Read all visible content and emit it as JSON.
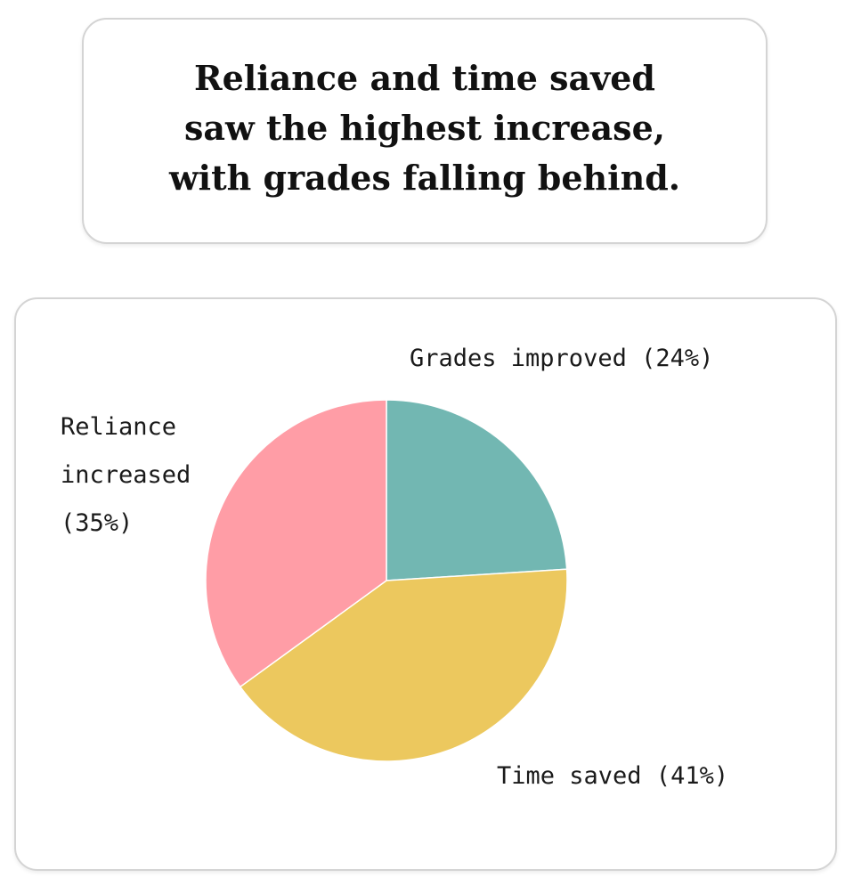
{
  "title": {
    "lines": [
      "Reliance and time saved",
      "saw the highest increase,",
      "with grades falling behind."
    ]
  },
  "chart_data": {
    "type": "pie",
    "title": "",
    "slices": [
      {
        "label": "Grades improved",
        "value": 24,
        "color": "#72b7b2"
      },
      {
        "label": "Time saved",
        "value": 41,
        "color": "#ecc85e"
      },
      {
        "label": "Reliance increased",
        "value": 35,
        "color": "#ff9da6"
      }
    ],
    "label_texts": {
      "grades": "Grades improved (24%)",
      "time": "Time saved (41%)",
      "reliance": [
        "Reliance",
        "increased",
        "(35%)"
      ]
    },
    "start": "12 o'clock",
    "direction": "clockwise"
  }
}
